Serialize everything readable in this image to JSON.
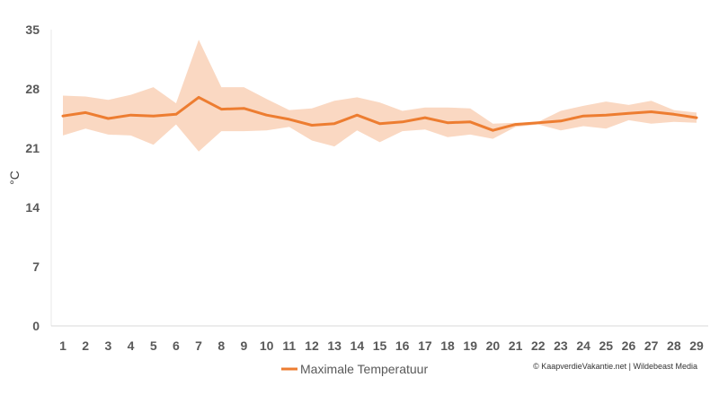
{
  "chart_data": {
    "type": "line",
    "ylabel": "°C",
    "xlabel": "",
    "ylim": [
      0,
      35
    ],
    "yticks": [
      0,
      7,
      14,
      21,
      28,
      35
    ],
    "categories": [
      "1",
      "2",
      "3",
      "4",
      "5",
      "6",
      "7",
      "8",
      "9",
      "10",
      "11",
      "12",
      "13",
      "14",
      "15",
      "16",
      "17",
      "18",
      "19",
      "20",
      "21",
      "22",
      "23",
      "24",
      "25",
      "26",
      "27",
      "28",
      "29"
    ],
    "series": [
      {
        "name": "Maximale Temperatuur",
        "color": "#ED7D31",
        "values": [
          24.8,
          25.2,
          24.5,
          24.9,
          24.8,
          25.0,
          27.0,
          25.6,
          25.7,
          24.9,
          24.4,
          23.7,
          23.9,
          24.9,
          23.9,
          24.1,
          24.6,
          24.0,
          24.1,
          23.1,
          23.8,
          24.0,
          24.2,
          24.8,
          24.9,
          25.1,
          25.3,
          25.0,
          24.6
        ]
      }
    ],
    "band": {
      "color": "#F8CBAD",
      "upper": [
        27.2,
        27.1,
        26.7,
        27.3,
        28.2,
        26.3,
        33.8,
        28.2,
        28.2,
        26.8,
        25.5,
        25.7,
        26.6,
        27.0,
        26.4,
        25.4,
        25.8,
        25.8,
        25.7,
        23.9,
        24.0,
        24.1,
        25.4,
        26.0,
        26.5,
        26.1,
        26.6,
        25.5,
        25.2
      ],
      "lower": [
        22.5,
        23.3,
        22.6,
        22.5,
        21.4,
        23.8,
        20.6,
        23.0,
        23.0,
        23.1,
        23.5,
        21.9,
        21.2,
        23.1,
        21.7,
        23.0,
        23.2,
        22.3,
        22.6,
        22.1,
        23.5,
        23.8,
        23.1,
        23.6,
        23.3,
        24.3,
        23.9,
        24.1,
        24.0
      ]
    },
    "grid": false,
    "legend": "bottom"
  },
  "legend": {
    "label": "Maximale Temperatuur"
  },
  "credit": "© KaapverdieVakantie.net | Wildebeast Media"
}
